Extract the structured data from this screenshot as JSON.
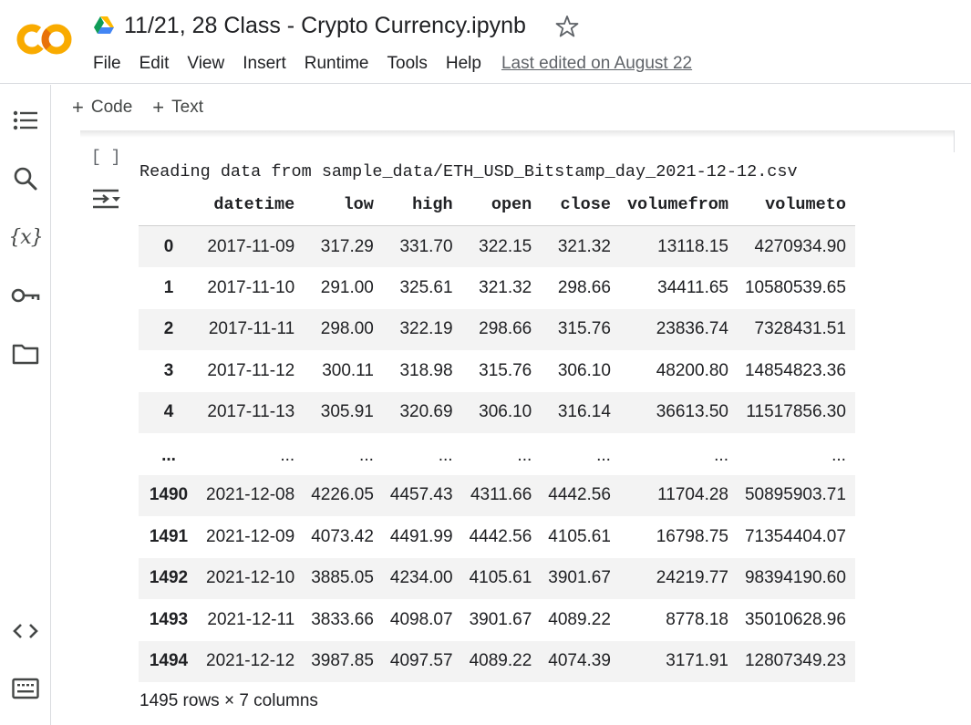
{
  "header": {
    "title": "11/21, 28 Class - Crypto Currency.ipynb",
    "menu": [
      "File",
      "Edit",
      "View",
      "Insert",
      "Runtime",
      "Tools",
      "Help"
    ],
    "last_edited": "Last edited on August 22",
    "colors": {
      "logo_orange": "#F9AB00",
      "logo_dark_orange": "#E8710A"
    }
  },
  "sidebar": {
    "items": [
      {
        "name": "table-of-contents-icon"
      },
      {
        "name": "search-icon"
      },
      {
        "name": "variables-icon",
        "glyph": "{x}"
      },
      {
        "name": "key-icon"
      },
      {
        "name": "folder-icon"
      },
      {
        "name": "code-snippets-icon"
      },
      {
        "name": "terminal-icon"
      }
    ]
  },
  "toolbar": {
    "code_label": "Code",
    "text_label": "Text",
    "plus": "+"
  },
  "cell": {
    "exec_count": "[ ]",
    "stream_text": "Reading data from sample_data/ETH_USD_Bitstamp_day_2021-12-12.csv",
    "dataframe": {
      "columns": [
        "",
        "datetime",
        "low",
        "high",
        "open",
        "close",
        "volumefrom",
        "volumeto"
      ],
      "rows": [
        [
          "0",
          "2017-11-09",
          "317.29",
          "331.70",
          "322.15",
          "321.32",
          "13118.15",
          "4270934.90"
        ],
        [
          "1",
          "2017-11-10",
          "291.00",
          "325.61",
          "321.32",
          "298.66",
          "34411.65",
          "10580539.65"
        ],
        [
          "2",
          "2017-11-11",
          "298.00",
          "322.19",
          "298.66",
          "315.76",
          "23836.74",
          "7328431.51"
        ],
        [
          "3",
          "2017-11-12",
          "300.11",
          "318.98",
          "315.76",
          "306.10",
          "48200.80",
          "14854823.36"
        ],
        [
          "4",
          "2017-11-13",
          "305.91",
          "320.69",
          "306.10",
          "316.14",
          "36613.50",
          "11517856.30"
        ],
        [
          "...",
          "...",
          "...",
          "...",
          "...",
          "...",
          "...",
          "..."
        ],
        [
          "1490",
          "2021-12-08",
          "4226.05",
          "4457.43",
          "4311.66",
          "4442.56",
          "11704.28",
          "50895903.71"
        ],
        [
          "1491",
          "2021-12-09",
          "4073.42",
          "4491.99",
          "4442.56",
          "4105.61",
          "16798.75",
          "71354404.07"
        ],
        [
          "1492",
          "2021-12-10",
          "3885.05",
          "4234.00",
          "4105.61",
          "3901.67",
          "24219.77",
          "98394190.60"
        ],
        [
          "1493",
          "2021-12-11",
          "3833.66",
          "4098.07",
          "3901.67",
          "4089.22",
          "8778.18",
          "35010628.96"
        ],
        [
          "1494",
          "2021-12-12",
          "3987.85",
          "4097.57",
          "4089.22",
          "4074.39",
          "3171.91",
          "12807349.23"
        ]
      ],
      "shape": "1495 rows × 7 columns"
    }
  }
}
